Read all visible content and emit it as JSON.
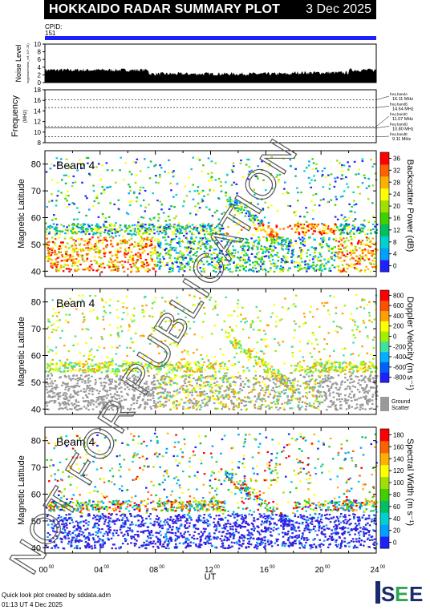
{
  "header": {
    "title": "HOKKAIDO RADAR SUMMARY PLOT",
    "date": "3 Dec 2025"
  },
  "cpid": {
    "label": "CPID:",
    "value": "151"
  },
  "noise": {
    "ylabel": "Noise Level",
    "ylabel_units": "log(noise/noise_ref, 10^-15)",
    "ticks": [
      "10",
      "8",
      "6",
      "4",
      "2",
      "0"
    ]
  },
  "frequency": {
    "ylabel": "Frequency",
    "ylabel_units": "(MHz)",
    "ticks": [
      "18",
      "16",
      "14",
      "12",
      "10",
      "8"
    ],
    "bands": [
      {
        "label": "freq bandA",
        "value": "16.11 MHz"
      },
      {
        "label": "freq bandB",
        "value": "14.64 MHz"
      },
      {
        "label": "freq bandC",
        "value": "11.07 MHz"
      },
      {
        "label": "freq bandD",
        "value": "10.80 MHz"
      },
      {
        "label": "freq bandE",
        "value": "9.11 MHz"
      }
    ]
  },
  "panels": [
    {
      "beam": "Beam  4",
      "ylabel": "Magnetic Latitude",
      "cbar_label": "Backscatter Power (dB)",
      "cbar_ticks": [
        "36",
        "32",
        "28",
        "24",
        "20",
        "16",
        "12",
        "8",
        "4",
        "0"
      ]
    },
    {
      "beam": "Beam  4",
      "ylabel": "Magnetic Latitude",
      "cbar_label": "Doppler Velocity (m s⁻¹)",
      "cbar_ticks": [
        "800",
        "600",
        "400",
        "200",
        "0",
        "-200",
        "-400",
        "-600",
        "-800"
      ],
      "ground_label": "Ground",
      "scatter_label": "Scatter"
    },
    {
      "beam": "Beam  4",
      "ylabel": "Magnetic Latitude",
      "cbar_label": "Spectral Width (m s⁻¹)",
      "cbar_ticks": [
        "180",
        "160",
        "140",
        "120",
        "100",
        "80",
        "60",
        "40",
        "20",
        "0"
      ]
    }
  ],
  "xaxis": {
    "label": "UT",
    "ticks": [
      {
        "h": "00",
        "m": "00"
      },
      {
        "h": "04",
        "m": "00"
      },
      {
        "h": "08",
        "m": "00"
      },
      {
        "h": "12",
        "m": "00"
      },
      {
        "h": "16",
        "m": "00"
      },
      {
        "h": "20",
        "m": "00"
      },
      {
        "h": "24",
        "m": "00"
      }
    ]
  },
  "lat_ticks": [
    "80",
    "70",
    "60",
    "50",
    "40"
  ],
  "watermark": "NOT FOR PUBLICATION",
  "footer": {
    "line1": "Quick look plot created by sddata.adm",
    "line2": "01:13 UT  4 Dec 2025"
  },
  "logo": {
    "text": "ISEE"
  },
  "chart_data": [
    {
      "type": "bar",
      "title": "Noise Level",
      "x_range_hours": [
        0,
        24
      ],
      "ylim": [
        0,
        10
      ],
      "note_levels": [
        {
          "x": [
            0,
            7.5
          ],
          "value": 2.8
        },
        {
          "x": [
            7.5,
            24
          ],
          "value": 2.0
        }
      ]
    },
    {
      "type": "line",
      "title": "Frequency",
      "ylim": [
        8,
        18
      ],
      "x_range_hours": [
        0,
        24
      ],
      "series": [
        {
          "name": "freq bandD",
          "values": [
            10.8
          ]
        }
      ]
    },
    {
      "type": "heatmap",
      "title": "Backscatter Power (dB)",
      "xlim": [
        0,
        24
      ],
      "ylim": [
        38,
        85
      ],
      "zlim": [
        0,
        36
      ]
    },
    {
      "type": "heatmap",
      "title": "Doppler Velocity",
      "xlim": [
        0,
        24
      ],
      "ylim": [
        38,
        85
      ],
      "zlim": [
        -800,
        800
      ]
    },
    {
      "type": "heatmap",
      "title": "Spectral Width",
      "xlim": [
        0,
        24
      ],
      "ylim": [
        38,
        85
      ],
      "zlim": [
        0,
        180
      ]
    }
  ],
  "colors": {
    "cpid_bar": "#2020ff",
    "watermark": "#555555"
  }
}
